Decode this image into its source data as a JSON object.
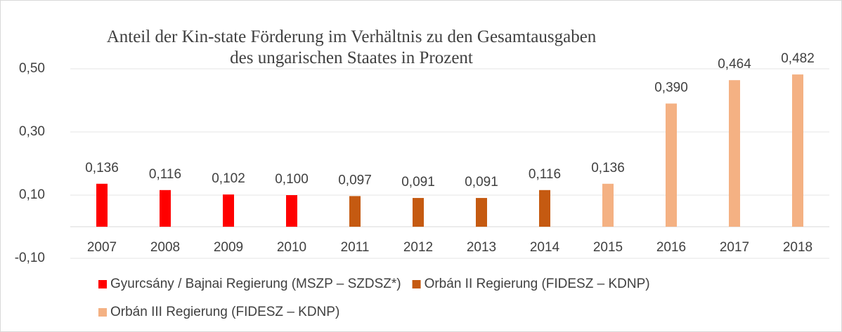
{
  "chart_data": {
    "type": "bar",
    "title": "Anteil der Kin-state Förderung im Verhältnis zu den Gesamtausgaben des ungarischen Staates in Prozent",
    "categories": [
      "2007",
      "2008",
      "2009",
      "2010",
      "2011",
      "2012",
      "2013",
      "2014",
      "2015",
      "2016",
      "2017",
      "2018"
    ],
    "series": [
      {
        "name": "Gyurcsány / Bajnai Regierung (MSZP – SZDSZ*)",
        "color": "#ff0000",
        "values": [
          0.136,
          0.116,
          0.102,
          0.1,
          null,
          null,
          null,
          null,
          null,
          null,
          null,
          null
        ],
        "value_labels": [
          "0,136",
          "0,116",
          "0,102",
          "0,100",
          null,
          null,
          null,
          null,
          null,
          null,
          null,
          null
        ]
      },
      {
        "name": "Orbán II Regierung (FIDESZ – KDNP)",
        "color": "#c55a11",
        "values": [
          null,
          null,
          null,
          null,
          0.097,
          0.091,
          0.091,
          0.116,
          null,
          null,
          null,
          null
        ],
        "value_labels": [
          null,
          null,
          null,
          null,
          "0,097",
          "0,091",
          "0,091",
          "0,116",
          null,
          null,
          null,
          null
        ]
      },
      {
        "name": "Orbán III Regierung (FIDESZ – KDNP)",
        "color": "#f4b183",
        "values": [
          null,
          null,
          null,
          null,
          null,
          null,
          null,
          null,
          0.136,
          0.39,
          0.464,
          0.482
        ],
        "value_labels": [
          null,
          null,
          null,
          null,
          null,
          null,
          null,
          null,
          "0,136",
          "0,390",
          "0,464",
          "0,482"
        ]
      }
    ],
    "ylim": [
      -0.1,
      0.5
    ],
    "yticks": [
      {
        "value": -0.1,
        "label": "-0,10"
      },
      {
        "value": 0.1,
        "label": "0,10"
      },
      {
        "value": 0.3,
        "label": "0,30"
      },
      {
        "value": 0.5,
        "label": "0,50"
      }
    ],
    "grid": true
  }
}
